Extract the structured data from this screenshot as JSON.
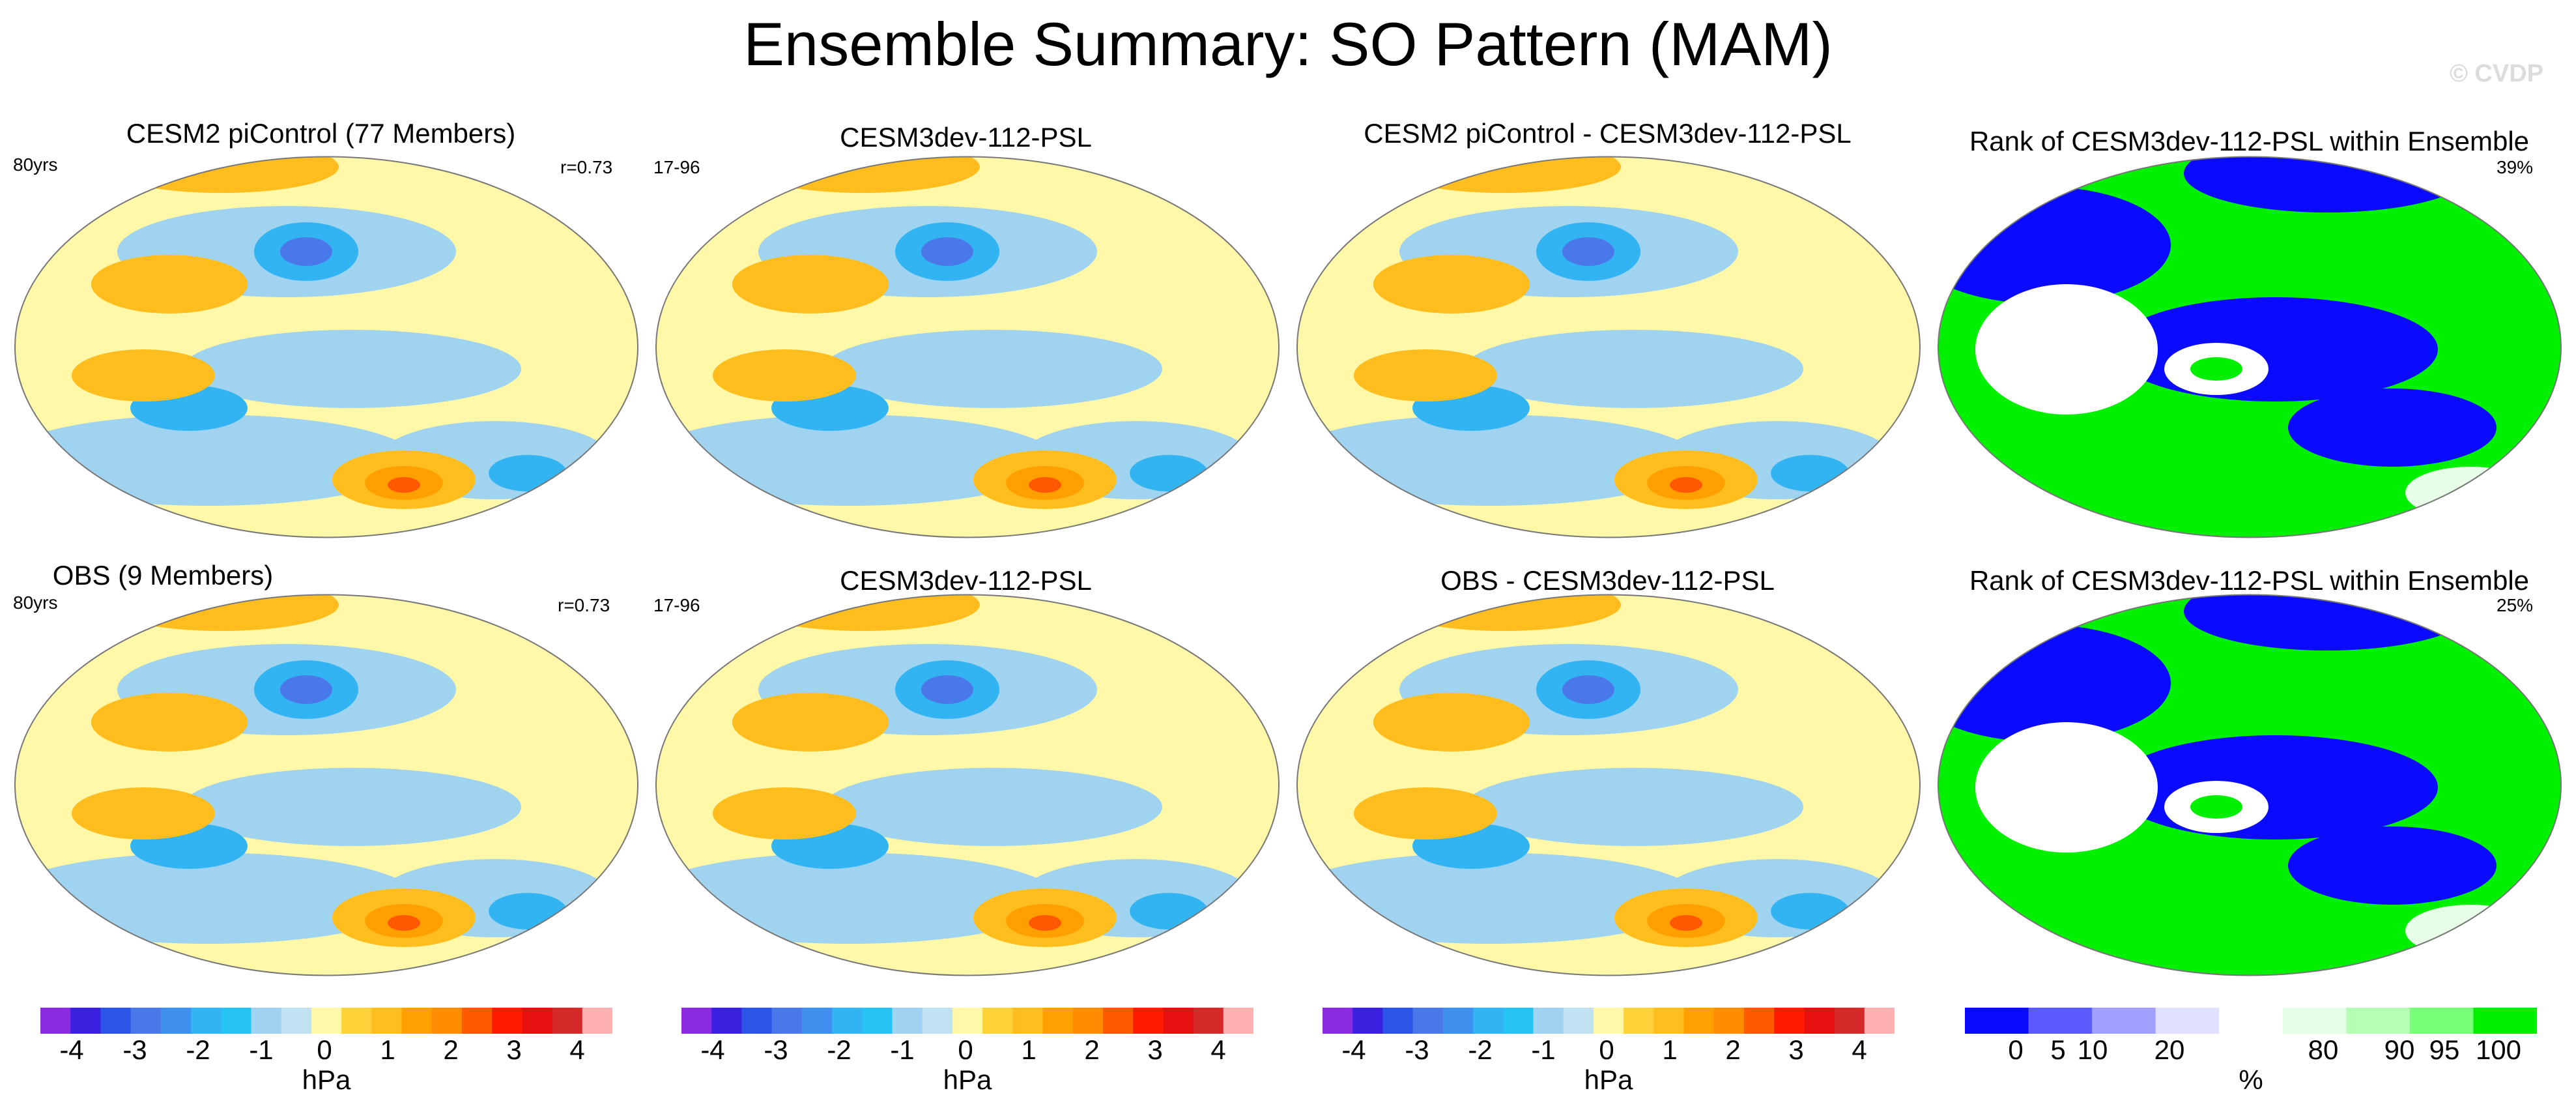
{
  "title": "Ensemble Summary: SO Pattern (MAM)",
  "copyright": "© CVDP",
  "colors": {
    "psl_colorbar": [
      "#8a2be2",
      "#3c20e0",
      "#2a55e6",
      "#4a78e8",
      "#3f8fef",
      "#33b4f2",
      "#27c3f5",
      "#9fd3f0",
      "#bfe1f2",
      "#fff8a8",
      "#ffd23a",
      "#ffbe1e",
      "#ffa000",
      "#ff8c00",
      "#ff5a00",
      "#ff1a00",
      "#e61010",
      "#d62a2a",
      "#ffb0b0"
    ],
    "rank_colorbar": [
      "#0a0aff",
      "#5a5aff",
      "#a0a0ff",
      "#e0e0ff",
      "#ffffff",
      "#e6ffe6",
      "#b4ffb4",
      "#78ff78",
      "#00f000"
    ]
  },
  "rows": [
    {
      "panels": [
        {
          "kind": "psl",
          "title": "CESM2 piControl (77 Members)",
          "left_note": "80yrs",
          "right_note": "r=0.73"
        },
        {
          "kind": "psl",
          "title": "CESM3dev-112-PSL",
          "left_note": "17-96",
          "right_note": ""
        },
        {
          "kind": "psl",
          "title": "CESM2 piControl - CESM3dev-112-PSL",
          "left_note": "",
          "right_note": ""
        },
        {
          "kind": "rank",
          "title": "Rank of CESM3dev-112-PSL within Ensemble",
          "left_note": "",
          "right_note": "39%"
        }
      ]
    },
    {
      "panels": [
        {
          "kind": "psl",
          "title": "OBS (9 Members)",
          "left_note": "80yrs",
          "right_note": "r=0.73"
        },
        {
          "kind": "psl",
          "title": "CESM3dev-112-PSL",
          "left_note": "17-96",
          "right_note": ""
        },
        {
          "kind": "psl",
          "title": "OBS - CESM3dev-112-PSL",
          "left_note": "",
          "right_note": ""
        },
        {
          "kind": "rank",
          "title": "Rank of CESM3dev-112-PSL within Ensemble",
          "left_note": "",
          "right_note": "25%"
        }
      ]
    }
  ],
  "colorbars": [
    {
      "units": "hPa",
      "labels": [
        "-4",
        "-3",
        "-2",
        "-1",
        "0",
        "1",
        "2",
        "3",
        "4"
      ]
    },
    {
      "units": "hPa",
      "labels": [
        "-4",
        "-3",
        "-2",
        "-1",
        "0",
        "1",
        "2",
        "3",
        "4"
      ]
    },
    {
      "units": "hPa",
      "labels": [
        "-4",
        "-3",
        "-2",
        "-1",
        "0",
        "1",
        "2",
        "3",
        "4"
      ]
    },
    {
      "units": "%",
      "labels": [
        "0",
        "5",
        "10",
        "20",
        "80",
        "90",
        "95",
        "100"
      ]
    }
  ]
}
